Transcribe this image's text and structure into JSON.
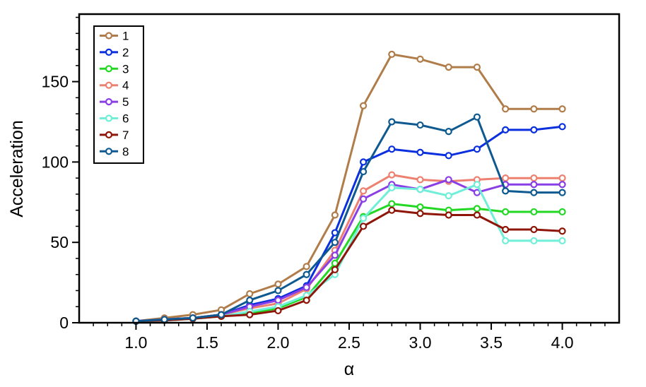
{
  "chart_data": {
    "type": "line",
    "xlabel": "α",
    "ylabel": "Acceleration",
    "xlim": [
      0.6,
      4.4
    ],
    "ylim": [
      0,
      192
    ],
    "xticks": [
      "1.0",
      "1.5",
      "2.0",
      "2.5",
      "3.0",
      "3.5",
      "4.0"
    ],
    "yticks": [
      "0",
      "50",
      "100",
      "150"
    ],
    "legend_position": "top-left",
    "grid": false,
    "x": [
      1.0,
      1.2,
      1.4,
      1.6,
      1.8,
      2.0,
      2.2,
      2.4,
      2.6,
      2.8,
      3.0,
      3.2,
      3.4,
      3.6,
      3.8,
      4.0
    ],
    "series": [
      {
        "name": "1",
        "color": "#b07d4a",
        "values": [
          1,
          3,
          5,
          8,
          18,
          24,
          35,
          67,
          135,
          167,
          164,
          159,
          159,
          133,
          133,
          133
        ]
      },
      {
        "name": "2",
        "color": "#0a2fdf",
        "values": [
          1,
          2,
          3,
          5,
          11,
          15,
          23,
          56,
          100,
          108,
          106,
          104,
          108,
          120,
          120,
          122
        ]
      },
      {
        "name": "3",
        "color": "#22d822",
        "values": [
          1,
          1.5,
          2.5,
          4,
          6,
          9,
          16,
          37,
          66,
          74,
          72,
          70,
          71,
          69,
          69,
          69
        ]
      },
      {
        "name": "4",
        "color": "#ee8070",
        "values": [
          1,
          2,
          3,
          5,
          9,
          12,
          21,
          45,
          82,
          92,
          89,
          88,
          89,
          90,
          90,
          90
        ]
      },
      {
        "name": "5",
        "color": "#8a3ee6",
        "values": [
          1,
          2,
          3,
          5,
          10,
          14,
          22,
          42,
          77,
          86,
          83,
          89,
          81,
          86,
          86,
          86
        ]
      },
      {
        "name": "6",
        "color": "#6fefd8",
        "values": [
          1,
          1.5,
          2.5,
          4,
          7,
          10,
          17,
          30,
          65,
          84,
          83,
          79,
          86,
          51,
          51,
          51
        ]
      },
      {
        "name": "7",
        "color": "#8e1508",
        "values": [
          1,
          1.5,
          2.5,
          4,
          5,
          7.5,
          14,
          33,
          60,
          70,
          68,
          67,
          67,
          58,
          58,
          57
        ]
      },
      {
        "name": "8",
        "color": "#0e5a90",
        "values": [
          1,
          2,
          3,
          5,
          14,
          20,
          30,
          50,
          94,
          125,
          123,
          119,
          128,
          82,
          81,
          81
        ]
      }
    ]
  }
}
